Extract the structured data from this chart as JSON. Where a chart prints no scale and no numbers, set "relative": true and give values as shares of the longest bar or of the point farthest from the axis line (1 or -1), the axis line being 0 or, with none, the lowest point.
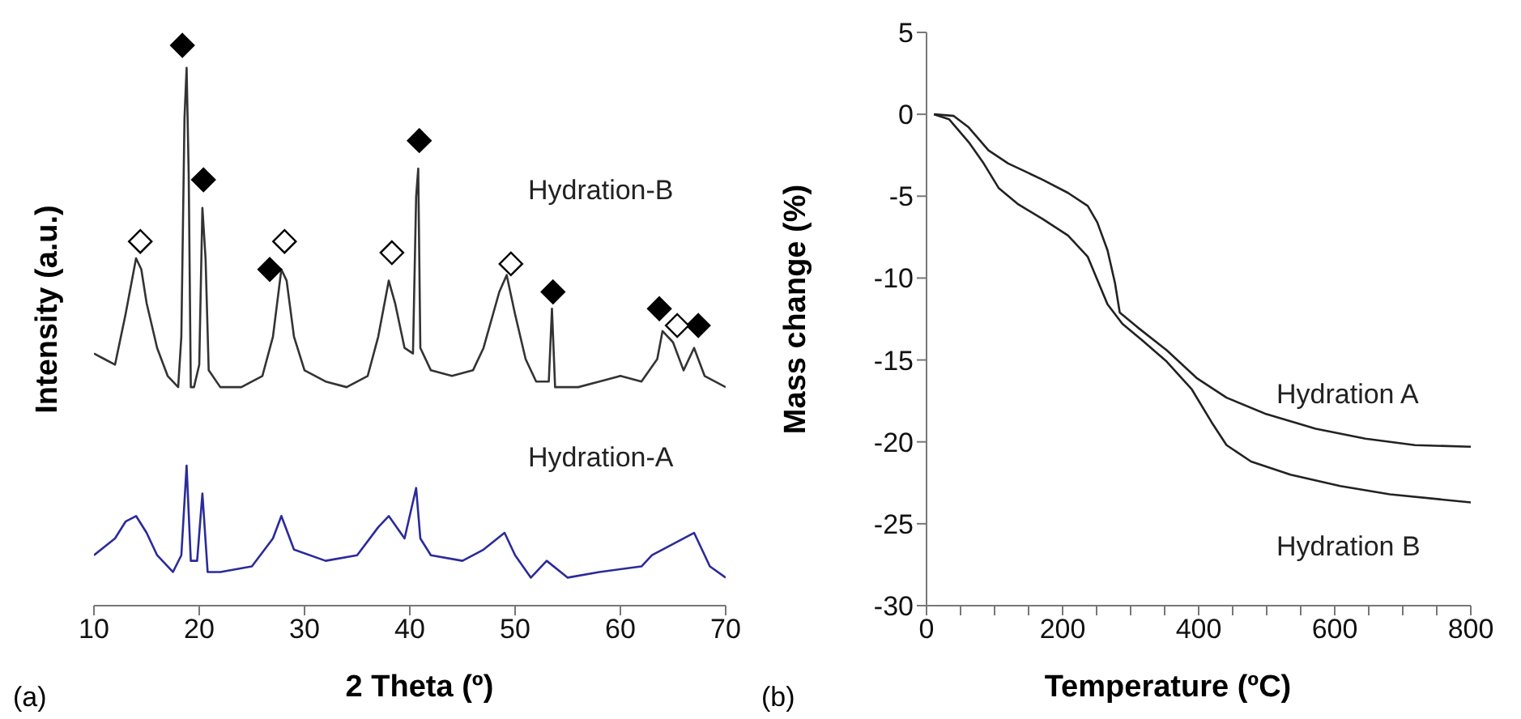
{
  "chart_data": [
    {
      "type": "line",
      "relative": true,
      "xlabel": "2 Theta (º)",
      "ylabel": "Intensity (a.u.)",
      "xlim": [
        10,
        70
      ],
      "xticks": [
        10,
        20,
        30,
        40,
        50,
        60,
        70
      ],
      "tick_labels": "x",
      "grid": false,
      "legend": false,
      "marker": "none",
      "annotations": [
        "(a)"
      ],
      "series": [
        {
          "name": "Hydration-B",
          "color": "#333333",
          "x": [
            10,
            11,
            12,
            13,
            14,
            14.5,
            15,
            16,
            17,
            18,
            18.3,
            18.6,
            18.8,
            19.0,
            19.2,
            19.5,
            20.0,
            20.3,
            20.6,
            20.9,
            22,
            24,
            26,
            27,
            27.8,
            28.3,
            29,
            30,
            32,
            34,
            36,
            37,
            38,
            38.6,
            39.5,
            40.3,
            40.6,
            40.8,
            41.0,
            42,
            44,
            46,
            47,
            48.5,
            49.2,
            50,
            51,
            52,
            53.2,
            53.5,
            53.8,
            56,
            58,
            60,
            62,
            63.5,
            64,
            65,
            66,
            67,
            68,
            70
          ],
          "values": [
            0.45,
            0.44,
            0.43,
            0.52,
            0.62,
            0.6,
            0.54,
            0.46,
            0.41,
            0.39,
            0.48,
            0.87,
            0.96,
            0.77,
            0.39,
            0.39,
            0.43,
            0.71,
            0.62,
            0.42,
            0.39,
            0.39,
            0.41,
            0.48,
            0.6,
            0.58,
            0.48,
            0.42,
            0.4,
            0.39,
            0.41,
            0.48,
            0.58,
            0.54,
            0.46,
            0.45,
            0.73,
            0.78,
            0.46,
            0.42,
            0.41,
            0.42,
            0.46,
            0.56,
            0.59,
            0.52,
            0.44,
            0.4,
            0.4,
            0.53,
            0.39,
            0.39,
            0.4,
            0.41,
            0.4,
            0.44,
            0.49,
            0.47,
            0.42,
            0.46,
            0.41,
            0.39
          ]
        },
        {
          "name": "Hydration-A",
          "color": "#2b2b9a",
          "x": [
            10,
            12,
            13,
            14,
            15,
            16,
            17.5,
            18.3,
            18.8,
            19.2,
            19.8,
            20.3,
            20.8,
            22,
            25,
            27,
            27.8,
            29,
            32,
            35,
            37,
            38,
            39.5,
            40.6,
            41,
            42,
            45,
            47,
            49,
            50,
            51.5,
            53,
            55,
            58,
            62,
            63,
            65,
            67,
            68.5,
            70
          ],
          "values": [
            0.09,
            0.12,
            0.15,
            0.16,
            0.13,
            0.09,
            0.06,
            0.09,
            0.25,
            0.08,
            0.08,
            0.2,
            0.06,
            0.06,
            0.07,
            0.12,
            0.16,
            0.1,
            0.08,
            0.09,
            0.14,
            0.16,
            0.12,
            0.21,
            0.12,
            0.09,
            0.08,
            0.1,
            0.13,
            0.09,
            0.05,
            0.08,
            0.05,
            0.06,
            0.07,
            0.09,
            0.11,
            0.13,
            0.07,
            0.05
          ]
        },
        {
          "type": "scatter",
          "marker": "diamond",
          "color": "#000000",
          "x": [
            18.4,
            20.4,
            26.7,
            40.9,
            53.6,
            63.7,
            67.4
          ],
          "values": [
            1.0,
            0.76,
            0.6,
            0.83,
            0.56,
            0.53,
            0.5
          ]
        },
        {
          "type": "scatter",
          "marker": "diamond",
          "color": "#ffffff",
          "x": [
            14.4,
            28.1,
            38.3,
            49.6,
            65.4
          ],
          "values": [
            0.65,
            0.65,
            0.63,
            0.61,
            0.5
          ]
        }
      ]
    },
    {
      "type": "line",
      "xlabel": "Temperature (ºC)",
      "ylabel": "Mass change (%)",
      "xlim": [
        0,
        800
      ],
      "xticks": [
        0,
        {
          "value": 50,
          "label": null
        },
        {
          "value": 100,
          "label": null
        },
        {
          "value": 150,
          "label": null
        },
        200,
        {
          "value": 250,
          "label": null
        },
        {
          "value": 300,
          "label": null
        },
        {
          "value": 350,
          "label": null
        },
        400,
        {
          "value": 450,
          "label": null
        },
        {
          "value": 500,
          "label": null
        },
        {
          "value": 550,
          "label": null
        },
        600,
        {
          "value": 650,
          "label": null
        },
        {
          "value": 700,
          "label": null
        },
        {
          "value": 750,
          "label": null
        },
        800
      ],
      "ylim": [
        -30,
        5
      ],
      "yticks": [
        -30,
        -25,
        -20,
        -15,
        -10,
        -5,
        0,
        5
      ],
      "grid": false,
      "legend": false,
      "marker": "none",
      "annotations": [
        "(b)"
      ],
      "series": [
        {
          "name": "Hydration A",
          "color": "#222222",
          "x": [
            11,
            40,
            62,
            91,
            120,
            171,
            208,
            237,
            251,
            266,
            277,
            284,
            310,
            353,
            397,
            441,
            499,
            572,
            645,
            718,
            800
          ],
          "values": [
            0,
            -0.1,
            -0.8,
            -2.2,
            -3.0,
            -4.0,
            -4.8,
            -5.6,
            -6.6,
            -8.3,
            -10.3,
            -12.1,
            -13.0,
            -14.4,
            -16.1,
            -17.3,
            -18.3,
            -19.2,
            -19.8,
            -20.2,
            -20.3
          ]
        },
        {
          "name": "Hydration B",
          "color": "#222222",
          "x": [
            11,
            33,
            62,
            84,
            106,
            135,
            171,
            208,
            237,
            251,
            266,
            288,
            317,
            353,
            390,
            419,
            441,
            477,
            535,
            608,
            681,
            800
          ],
          "values": [
            0,
            -0.3,
            -1.7,
            -3.0,
            -4.5,
            -5.5,
            -6.4,
            -7.4,
            -8.7,
            -10.1,
            -11.6,
            -12.8,
            -13.8,
            -15.1,
            -16.8,
            -18.8,
            -20.2,
            -21.2,
            -22.0,
            -22.7,
            -23.2,
            -23.7
          ]
        }
      ]
    }
  ]
}
